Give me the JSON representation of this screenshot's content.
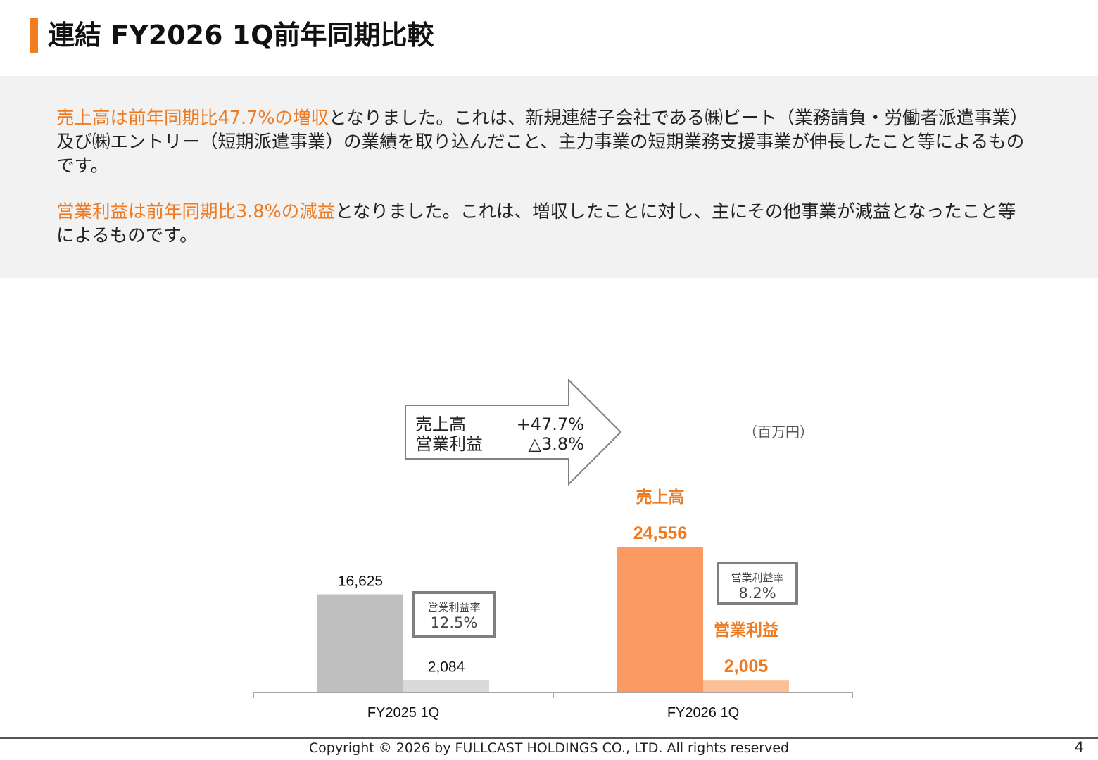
{
  "slide": {
    "title": "連結 FY2026 1Q前年同期比較",
    "page_number": "4",
    "copyright": "Copyright © 2026 by FULLCAST HOLDINGS CO., LTD. All rights reserved",
    "accent_color": "#f07d1f"
  },
  "summary": {
    "p1_highlight": "売上高は前年同期比47.7%の増収",
    "p1_rest": "となりました。これは、新規連結子会社である㈱ビート（業務請負・労働者派遣事業）及び㈱エントリー（短期派遣事業）の業績を取り込んだこと、主力事業の短期業務支援事業が伸長したこと等によるものです。",
    "p2_highlight": "営業利益は前年同期比3.8%の減益",
    "p2_rest": "となりました。これは、増収したことに対し、主にその他事業が減益となったこと等によるものです。"
  },
  "callout": {
    "row1_label": "売上高",
    "row1_value": "+47.7%",
    "row2_label": "営業利益",
    "row2_value": "△3.8%"
  },
  "unit_label": "（百万円）",
  "chart_data": {
    "type": "bar",
    "categories": [
      "FY2025 1Q",
      "FY2026 1Q"
    ],
    "series": [
      {
        "name": "売上高",
        "values": [
          16625,
          24556
        ],
        "value_labels": [
          "16,625",
          "24,556"
        ],
        "colors": [
          "#bfbfbf",
          "#fb9a62"
        ],
        "label_colors": [
          "#111111",
          "#ee7b22"
        ]
      },
      {
        "name": "営業利益",
        "values": [
          2084,
          2005
        ],
        "value_labels": [
          "2,084",
          "2,005"
        ],
        "colors": [
          "#d9d9d9",
          "#fbc095"
        ],
        "label_colors": [
          "#111111",
          "#ee7b22"
        ]
      }
    ],
    "series_labels_shown_for_category": "FY2026 1Q",
    "series_label_color": "#ee7b22",
    "operating_margin": {
      "label": "営業利益率",
      "values": [
        "12.5%",
        "8.2%"
      ]
    },
    "ylim": [
      0,
      24556
    ],
    "grid": false,
    "legend": "none"
  }
}
